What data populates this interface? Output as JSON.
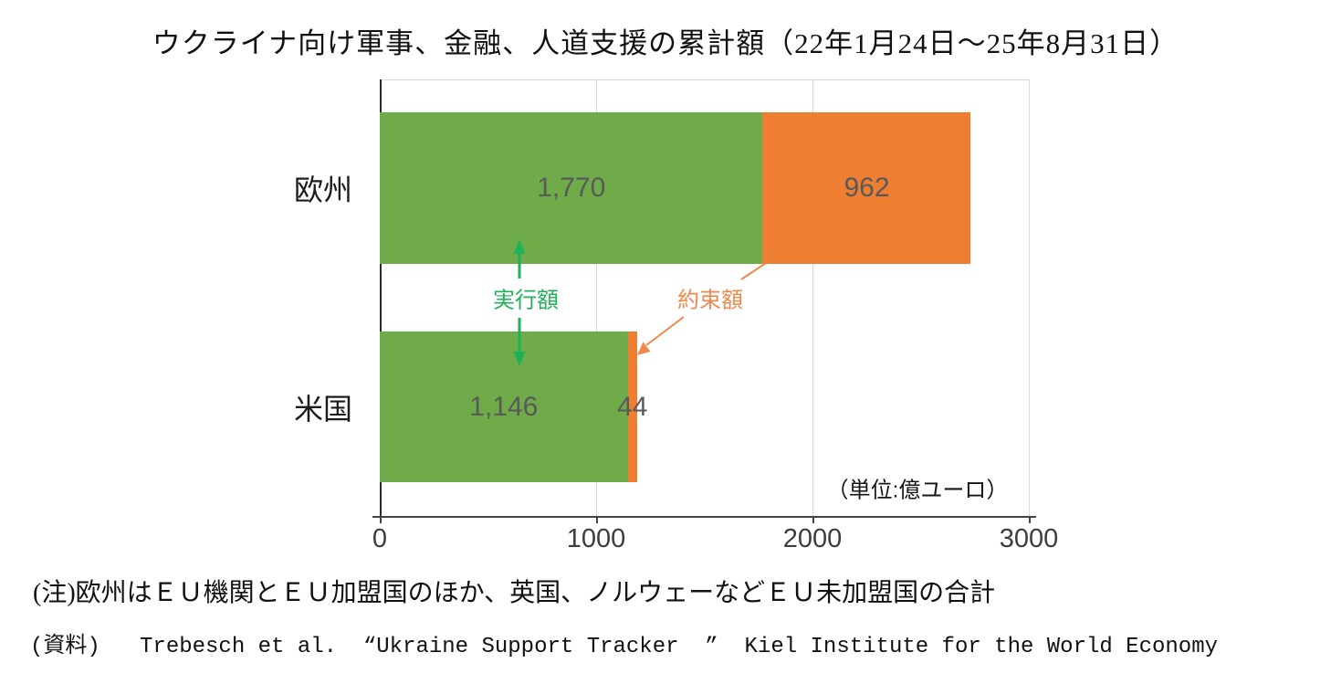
{
  "title": "ウクライナ向け軍事、金融、人道支援の累計額（22年1月24日～25年8月31日）",
  "chart_data": {
    "type": "bar",
    "orientation": "horizontal",
    "stacked": true,
    "title": "ウクライナ向け軍事、金融、人道支援の累計額（22年1月24日～25年8月31日）",
    "categories": [
      "欧州",
      "米国"
    ],
    "series": [
      {
        "name": "実行額",
        "color": "#6fac49",
        "values": [
          1770,
          1146
        ],
        "labels": [
          "1,770",
          "1,146"
        ]
      },
      {
        "name": "約束額",
        "color": "#ed7e32",
        "values": [
          962,
          44
        ],
        "labels": [
          "962",
          "44"
        ]
      }
    ],
    "xlim": [
      0,
      3000
    ],
    "xticks": [
      0,
      1000,
      2000,
      3000
    ],
    "grid": true,
    "legend_position": "inline-annotations",
    "value_label_color": "#595959",
    "unit_label": "（単位:億ユーロ）",
    "annotations": {
      "executed": {
        "text": "実行額",
        "color": "#1eb15a"
      },
      "committed": {
        "text": "約束額",
        "color": "#f0884d"
      }
    }
  },
  "notes": {
    "note": "(注)欧州はＥＵ機関とＥＵ加盟国のほか、英国、ノルウェーなどＥＵ未加盟国の合計",
    "source": "(資料)   Trebesch et al.  “Ukraine Support Tracker  ”  Kiel Institute for the World Economy"
  }
}
